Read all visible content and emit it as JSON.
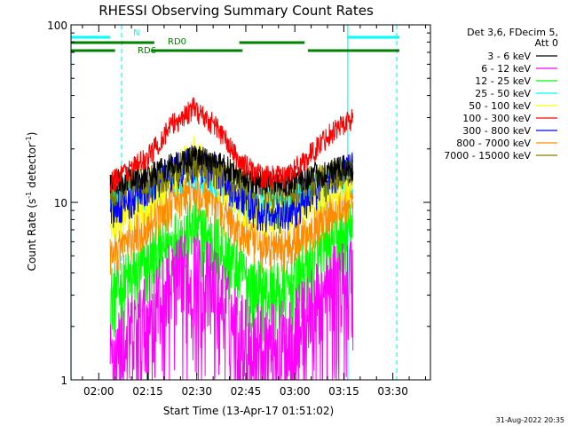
{
  "chart_data": {
    "type": "line",
    "title": "RHESSI Observing Summary Count Rates",
    "xlabel": "Start Time (13-Apr-17 01:51:02)",
    "ylabel_main": "Count Rate (s",
    "ylabel_sup1": "-1",
    "ylabel_mid": " detector",
    "ylabel_sup2": "-1",
    "ylabel_end": ")",
    "y_scale": "log",
    "ylim": [
      1,
      100
    ],
    "y_ticks": [
      {
        "value": 1,
        "label": "1"
      },
      {
        "value": 10,
        "label": "10"
      },
      {
        "value": 100,
        "label": "100"
      }
    ],
    "xlim_minutes": [
      -8.5,
      101.5
    ],
    "x_ticks": [
      {
        "minutes": 0,
        "label": "02:00"
      },
      {
        "minutes": 15,
        "label": "02:15"
      },
      {
        "minutes": 30,
        "label": "02:30"
      },
      {
        "minutes": 45,
        "label": "02:45"
      },
      {
        "minutes": 60,
        "label": "03:00"
      },
      {
        "minutes": 75,
        "label": "03:15"
      },
      {
        "minutes": 90,
        "label": "03:30"
      }
    ],
    "data_range_minutes": [
      3.5,
      77.8
    ],
    "legend_header": [
      "Det 3,6, FDecim 5,",
      "Att 0"
    ],
    "series": [
      {
        "name": "3 - 6 keV",
        "color": "#000000",
        "x": [
          3.5,
          15,
          22,
          29,
          36,
          43,
          50,
          57,
          64,
          71,
          77.8
        ],
        "values": [
          13,
          14,
          16,
          18,
          17,
          14,
          13,
          13,
          14,
          15,
          16
        ],
        "noise": 0.08
      },
      {
        "name": "6 - 12 keV",
        "color": "#ff00ff",
        "x": [
          3.5,
          15,
          22,
          29,
          36,
          43,
          50,
          57,
          64,
          71,
          77.8
        ],
        "values": [
          1.3,
          2.2,
          3.4,
          4.0,
          3.2,
          1.8,
          1.5,
          1.6,
          2.3,
          3.1,
          3.9
        ],
        "noise": 0.35
      },
      {
        "name": "12 - 25 keV",
        "color": "#00ff00",
        "x": [
          3.5,
          15,
          22,
          29,
          36,
          43,
          50,
          57,
          64,
          71,
          77.8
        ],
        "values": [
          3.0,
          4.5,
          6.0,
          7.2,
          6.0,
          4.0,
          3.1,
          3.1,
          4.2,
          5.8,
          7.0
        ],
        "noise": 0.22
      },
      {
        "name": "25 - 50 keV",
        "color": "#00ffff",
        "x": [
          3.5,
          15,
          22,
          29,
          36,
          43,
          50,
          57,
          64,
          71,
          77.8
        ],
        "values": [
          11,
          12,
          14,
          16,
          14,
          11,
          9.5,
          9.8,
          11.5,
          13,
          15
        ],
        "noise": 0.12
      },
      {
        "name": "50 - 100 keV",
        "color": "#ffff00",
        "x": [
          3.5,
          15,
          22,
          29,
          36,
          43,
          50,
          57,
          64,
          71,
          77.8
        ],
        "values": [
          8,
          10,
          14,
          19,
          14,
          10,
          8.5,
          8.5,
          10,
          12,
          14
        ],
        "noise": 0.12
      },
      {
        "name": "100 - 300 keV",
        "color": "#ff0000",
        "x": [
          3.5,
          15,
          22,
          29,
          36,
          43,
          50,
          57,
          64,
          71,
          77.8
        ],
        "values": [
          13,
          18,
          27,
          34,
          27,
          17,
          14,
          14,
          18,
          25,
          30
        ],
        "noise": 0.07
      },
      {
        "name": "300 - 800 keV",
        "color": "#0000ff",
        "x": [
          3.5,
          15,
          22,
          29,
          36,
          43,
          50,
          57,
          64,
          71,
          77.8
        ],
        "values": [
          9,
          12,
          15,
          17,
          15,
          11,
          8.5,
          8.5,
          10.5,
          14,
          16
        ],
        "noise": 0.11
      },
      {
        "name": "800 - 7000 keV",
        "color": "#ff8c00",
        "x": [
          3.5,
          15,
          22,
          29,
          36,
          43,
          50,
          57,
          64,
          71,
          77.8
        ],
        "values": [
          5.2,
          7.5,
          10,
          12,
          10,
          7.0,
          5.5,
          5.6,
          7.0,
          9.0,
          10.5
        ],
        "noise": 0.13
      },
      {
        "name": "7000 - 15000 keV",
        "color": "#808000",
        "x": [
          3.5,
          15,
          22,
          29,
          36,
          43,
          50,
          57,
          64,
          71,
          77.8
        ],
        "values": [
          12,
          13,
          15,
          17,
          15,
          13,
          11.5,
          12,
          13,
          14,
          15
        ],
        "noise": 0.1
      }
    ],
    "flag_bars": [
      {
        "label": "N",
        "color": "#00ffff",
        "segments": [
          [
            -8.5,
            3.5
          ],
          [
            76,
            92
          ]
        ],
        "level": 0
      },
      {
        "label": "RD0",
        "color": "#008000",
        "segments": [
          [
            -8.5,
            17
          ],
          [
            43,
            63
          ]
        ],
        "level": 1
      },
      {
        "label": "RD6",
        "color": "#008000",
        "segments": [
          [
            -8.5,
            5
          ],
          [
            16,
            44
          ],
          [
            64,
            92
          ]
        ],
        "level": 2
      }
    ],
    "vertical_lines": [
      {
        "minutes": -8.5,
        "color": "#00ffff",
        "dashed": false
      },
      {
        "minutes": 7.0,
        "color": "#00ffff",
        "dashed": true
      },
      {
        "minutes": 76.2,
        "color": "#00ffff",
        "dashed": false
      },
      {
        "minutes": 91.2,
        "color": "#00ffff",
        "dashed": true
      }
    ],
    "footer_date": "31-Aug-2022 20:35"
  }
}
